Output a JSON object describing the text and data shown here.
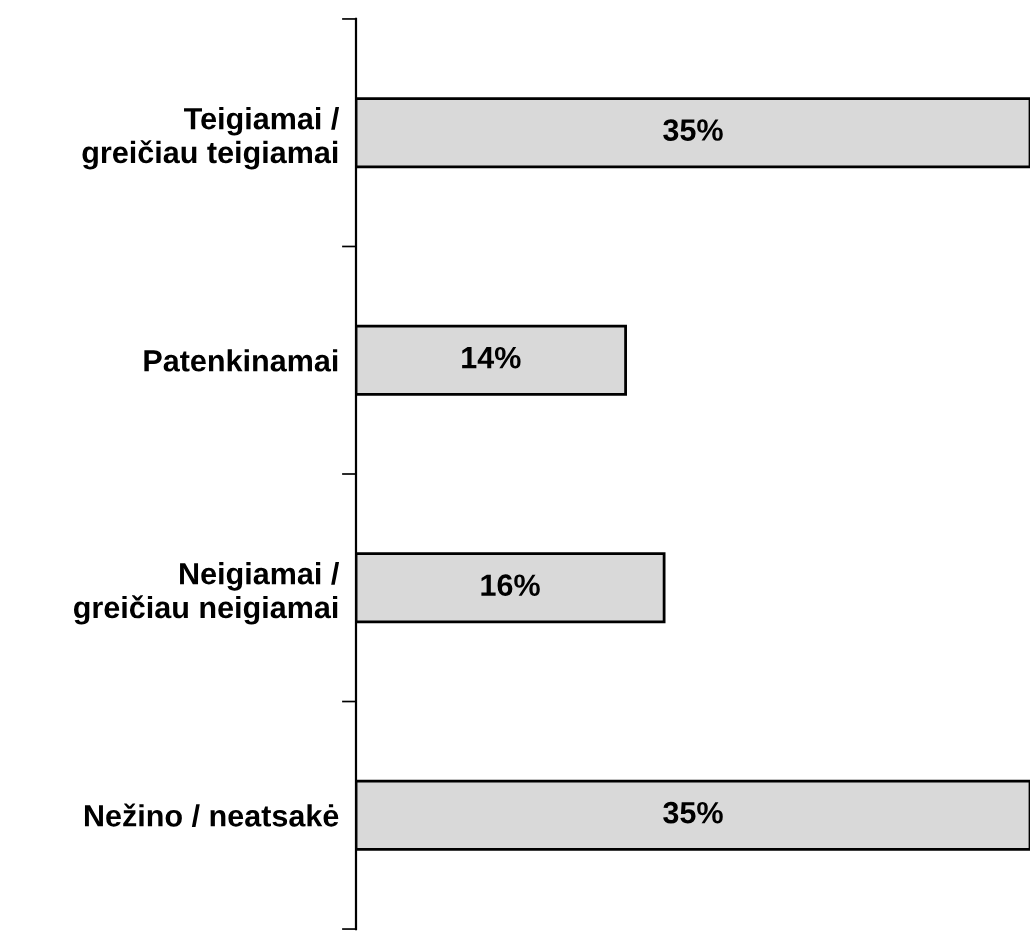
{
  "chart_data": {
    "type": "bar",
    "orientation": "horizontal",
    "categories": [
      "Teigiamai /\ngreičiau teigiamai",
      "Patenkinamai",
      "Neigiamai /\ngreičiau neigiamai",
      "Nežino / neatsakė"
    ],
    "values": [
      35,
      14,
      16,
      35
    ],
    "value_labels": [
      "35%",
      "14%",
      "16%",
      "35%"
    ],
    "color": "#d9d9d9",
    "grid": false,
    "legend": false
  }
}
